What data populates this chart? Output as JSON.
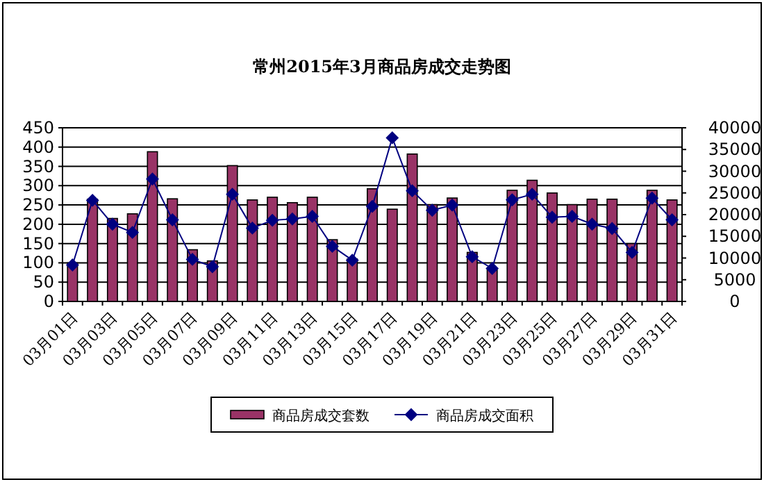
{
  "chart_data": {
    "type": "bar",
    "title": "常州2015年3月商品房成交走势图",
    "categories": [
      "03月01日",
      null,
      "03月03日",
      null,
      "03月05日",
      null,
      "03月07日",
      null,
      "03月09日",
      null,
      "03月11日",
      null,
      "03月13日",
      null,
      "03月15日",
      null,
      "03月17日",
      null,
      "03月19日",
      null,
      "03月21日",
      null,
      "03月23日",
      null,
      "03月25日",
      null,
      "03月27日",
      null,
      "03月29日",
      null,
      "03月31日"
    ],
    "series": [
      {
        "name": "商品房成交套数",
        "color": "#993366",
        "values": [
          100,
          265,
          215,
          227,
          388,
          266,
          134,
          105,
          352,
          263,
          270,
          256,
          270,
          160,
          110,
          292,
          239,
          382,
          251,
          268,
          127,
          84,
          288,
          314,
          281,
          251,
          265,
          265,
          150,
          288,
          263
        ]
      },
      {
        "name": "商品房成交面积",
        "type": "line",
        "axis": "y2",
        "color": "#000080",
        "marker": "diamond",
        "values": [
          8400,
          23300,
          17800,
          15900,
          28200,
          18800,
          9700,
          8000,
          24700,
          16900,
          18700,
          19000,
          19600,
          12700,
          9500,
          21900,
          37700,
          25500,
          21000,
          22200,
          10300,
          7600,
          23400,
          24700,
          19400,
          19600,
          17800,
          16800,
          11300,
          23800,
          18800
        ]
      }
    ],
    "ylim": [
      0,
      450
    ],
    "yticks": [
      0,
      50,
      100,
      150,
      200,
      250,
      300,
      350,
      400,
      450
    ],
    "y2lim": [
      0,
      40000
    ],
    "y2ticks": [
      0,
      5000,
      10000,
      15000,
      20000,
      25000,
      30000,
      35000,
      40000
    ],
    "grid": "y",
    "legend": "bottom"
  }
}
